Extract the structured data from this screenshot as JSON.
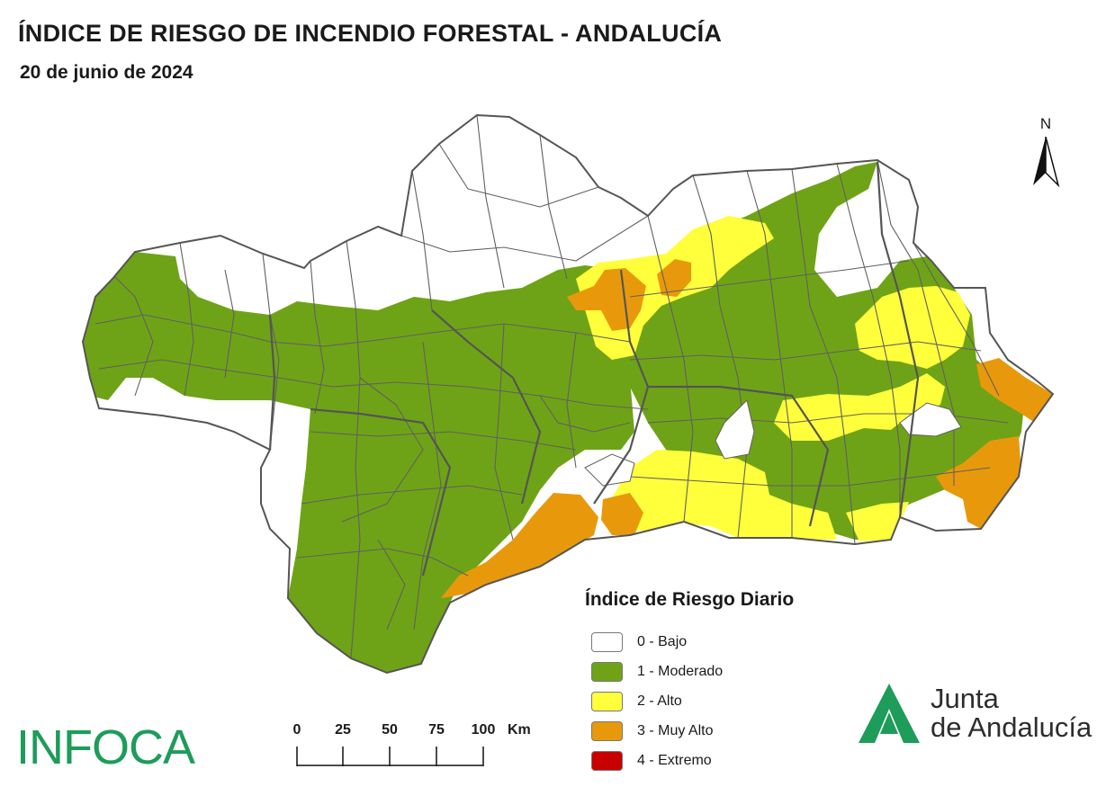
{
  "header": {
    "title": "ÍNDICE DE RIESGO DE INCENDIO FORESTAL - ANDALUCÍA",
    "date": "20 de junio de 2024"
  },
  "north_arrow": {
    "label": "N"
  },
  "legend": {
    "title": "Índice de Riesgo Diario",
    "items": [
      {
        "label": "0 - Bajo",
        "color": "#ffffff"
      },
      {
        "label": "1 - Moderado",
        "color": "#6fa317"
      },
      {
        "label": "2 - Alto",
        "color": "#ffff3c"
      },
      {
        "label": "3 - Muy Alto",
        "color": "#e8990b"
      },
      {
        "label": "4 - Extremo",
        "color": "#c80000"
      }
    ]
  },
  "scale_bar": {
    "ticks": [
      "0",
      "25",
      "50",
      "75",
      "100"
    ],
    "unit": "Km"
  },
  "logos": {
    "infoca": "INFOCA",
    "junta_line1": "Junta",
    "junta_line2": "de Andalucía"
  },
  "colors": {
    "low": "#ffffff",
    "moderate": "#6fa317",
    "high": "#ffff3c",
    "very_high": "#e8990b",
    "extreme": "#c80000",
    "boundary": "#555555",
    "logo_green": "#1d9c5a"
  }
}
